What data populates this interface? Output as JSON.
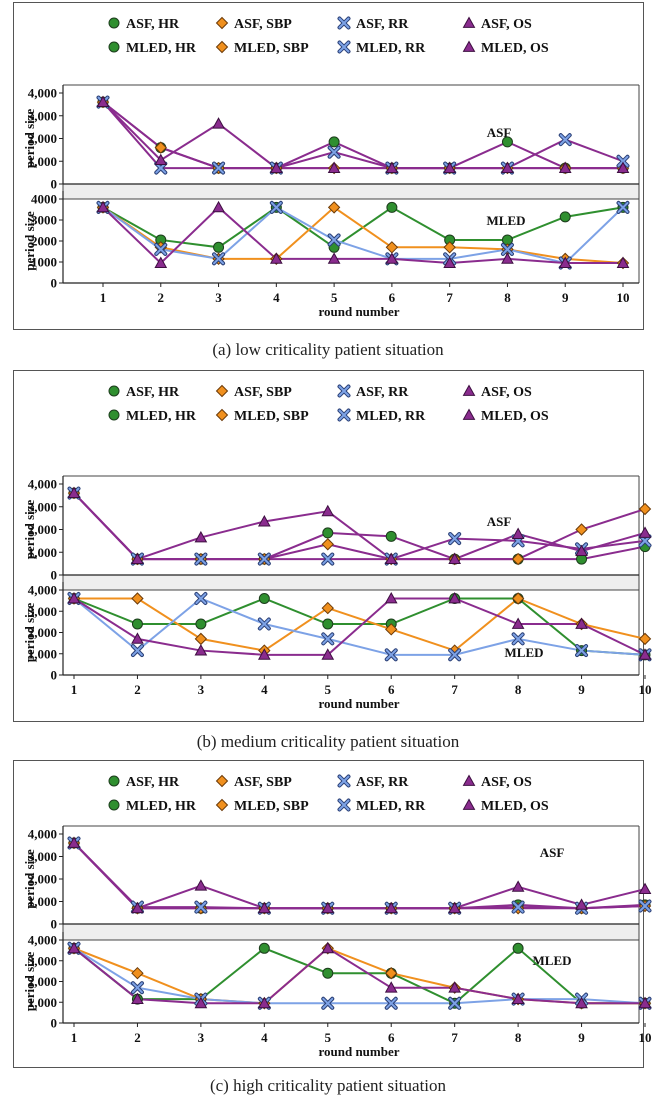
{
  "chart_data": [
    {
      "type": "line",
      "caption": "(a) low criticality patient situation",
      "legend": [
        "ASF, HR",
        "ASF, SBP",
        "ASF, RR",
        "ASF, OS",
        "MLED, HR",
        "MLED, SBP",
        "MLED, RR",
        "MLED, OS"
      ],
      "xlabel": "round number",
      "ylabel": "period size",
      "x": [
        1,
        2,
        3,
        4,
        5,
        6,
        7,
        8,
        9,
        10
      ],
      "top": {
        "label": "ASF",
        "ylim": [
          0,
          4000
        ],
        "yticks": [
          "0",
          "1,000",
          "2,000",
          "3,000",
          "4,000"
        ],
        "series": [
          {
            "name": "ASF, HR",
            "values": [
              3600,
              1600,
              700,
              700,
              1850,
              700,
              700,
              1850,
              700,
              700
            ]
          },
          {
            "name": "ASF, SBP",
            "values": [
              3600,
              1600,
              700,
              700,
              700,
              700,
              700,
              700,
              700,
              700
            ]
          },
          {
            "name": "ASF, RR",
            "values": [
              3600,
              700,
              700,
              700,
              1400,
              700,
              700,
              700,
              1950,
              1000
            ]
          },
          {
            "name": "ASF, OS",
            "values": [
              3600,
              1050,
              2650,
              700,
              700,
              700,
              700,
              700,
              700,
              700
            ]
          }
        ]
      },
      "bottom": {
        "label": "MLED",
        "ylim": [
          0,
          4000
        ],
        "yticks": [
          "0",
          "1000",
          "2000",
          "3000",
          "4000"
        ],
        "series": [
          {
            "name": "MLED, HR",
            "values": [
              3600,
              2050,
              1700,
              3600,
              1700,
              3600,
              2050,
              2050,
              3150,
              3600
            ]
          },
          {
            "name": "MLED, SBP",
            "values": [
              3600,
              1700,
              1150,
              1150,
              3600,
              1700,
              1700,
              1600,
              1150,
              950
            ]
          },
          {
            "name": "MLED, RR",
            "values": [
              3600,
              1600,
              1150,
              3600,
              2050,
              1150,
              1150,
              1600,
              950,
              3600
            ]
          },
          {
            "name": "MLED, OS",
            "values": [
              3600,
              950,
              3600,
              1150,
              1150,
              1150,
              950,
              1150,
              950,
              950
            ]
          }
        ]
      }
    },
    {
      "type": "line",
      "caption": "(b) medium criticality patient situation",
      "legend": [
        "ASF, HR",
        "ASF, SBP",
        "ASF, RR",
        "ASF, OS",
        "MLED, HR",
        "MLED, SBP",
        "MLED, RR",
        "MLED, OS"
      ],
      "xlabel": "round number",
      "ylabel": "period size",
      "x": [
        1,
        2,
        3,
        4,
        5,
        6,
        7,
        8,
        9,
        10
      ],
      "top": {
        "label": "ASF",
        "ylim": [
          0,
          4000
        ],
        "yticks": [
          "0",
          "1,000",
          "2,000",
          "3,000",
          "4,000"
        ],
        "series": [
          {
            "name": "ASF, HR",
            "values": [
              3600,
              700,
              700,
              700,
              1850,
              1700,
              700,
              700,
              700,
              1250
            ]
          },
          {
            "name": "ASF, SBP",
            "values": [
              3600,
              700,
              700,
              700,
              1350,
              700,
              700,
              700,
              2000,
              2900
            ]
          },
          {
            "name": "ASF, RR",
            "values": [
              3600,
              700,
              700,
              700,
              700,
              700,
              1600,
              1500,
              1150,
              1500
            ]
          },
          {
            "name": "ASF, OS",
            "values": [
              3600,
              700,
              1650,
              2350,
              2800,
              700,
              700,
              1800,
              1050,
              1850
            ]
          }
        ]
      },
      "bottom": {
        "label": "MLED",
        "ylim": [
          0,
          4000
        ],
        "yticks": [
          "0",
          "1,000",
          "2,000",
          "3,000",
          "4,000"
        ],
        "series": [
          {
            "name": "MLED, HR",
            "values": [
              3600,
              2400,
              2400,
              3600,
              2400,
              2400,
              3600,
              3600,
              1150,
              950
            ]
          },
          {
            "name": "MLED, SBP",
            "values": [
              3600,
              3600,
              1700,
              1150,
              3150,
              2150,
              1150,
              3600,
              2400,
              1700
            ]
          },
          {
            "name": "MLED, RR",
            "values": [
              3600,
              1150,
              3600,
              2400,
              1700,
              950,
              950,
              1700,
              1150,
              950
            ]
          },
          {
            "name": "MLED, OS",
            "values": [
              3600,
              1700,
              1150,
              950,
              950,
              3600,
              3600,
              2400,
              2400,
              950
            ]
          }
        ]
      }
    },
    {
      "type": "line",
      "caption": "(c) high criticality patient situation",
      "legend": [
        "ASF, HR",
        "ASF, SBP",
        "ASF, RR",
        "ASF, OS",
        "MLED, HR",
        "MLED, SBP",
        "MLED, RR",
        "MLED, OS"
      ],
      "xlabel": "round number",
      "ylabel": "period size",
      "x": [
        1,
        2,
        3,
        4,
        5,
        6,
        7,
        8,
        9,
        10
      ],
      "top": {
        "label": "ASF",
        "ylim": [
          0,
          4000
        ],
        "yticks": [
          "0",
          "1,000",
          "2,000",
          "3,000",
          "4,000"
        ],
        "series": [
          {
            "name": "ASF, HR",
            "values": [
              3600,
              700,
              700,
              700,
              700,
              700,
              700,
              850,
              700,
              850
            ]
          },
          {
            "name": "ASF, SBP",
            "values": [
              3600,
              700,
              700,
              700,
              700,
              700,
              700,
              700,
              700,
              800
            ]
          },
          {
            "name": "ASF, RR",
            "values": [
              3600,
              750,
              750,
              700,
              700,
              700,
              700,
              750,
              700,
              800
            ]
          },
          {
            "name": "ASF, OS",
            "values": [
              3600,
              700,
              1700,
              700,
              700,
              700,
              700,
              1650,
              850,
              1550
            ]
          }
        ]
      },
      "bottom": {
        "label": "MLED",
        "ylim": [
          0,
          4000
        ],
        "yticks": [
          "0",
          "1,000",
          "2,000",
          "3,000",
          "4,000"
        ],
        "series": [
          {
            "name": "MLED, HR",
            "values": [
              3600,
              1150,
              1150,
              3600,
              2400,
              2400,
              950,
              3600,
              950,
              950
            ]
          },
          {
            "name": "MLED, SBP",
            "values": [
              3600,
              2400,
              1150,
              950,
              3600,
              2400,
              1700,
              1150,
              950,
              950
            ]
          },
          {
            "name": "MLED, RR",
            "values": [
              3600,
              1700,
              1150,
              950,
              950,
              950,
              950,
              1150,
              1150,
              950
            ]
          },
          {
            "name": "MLED, OS",
            "values": [
              3600,
              1150,
              950,
              950,
              3600,
              1700,
              1700,
              1150,
              950,
              950
            ]
          }
        ]
      }
    }
  ],
  "colors": {
    "HR": "#2f8f2f",
    "SBP": "#f0901e",
    "RR": "#7da2e6",
    "OS": "#8a2c8e",
    "ASF_line": "#8a2c8e",
    "MLED_line": "#7da2e6"
  }
}
